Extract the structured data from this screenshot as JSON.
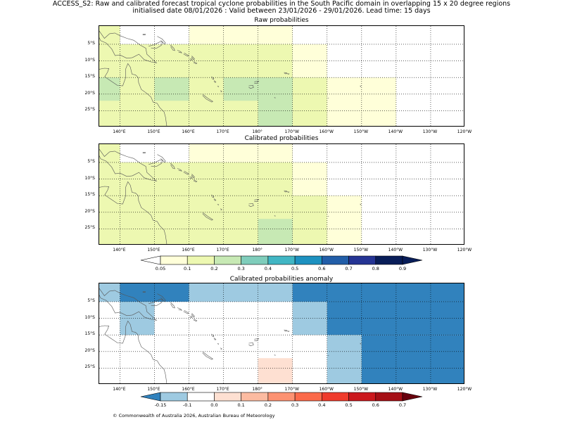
{
  "header": {
    "line1": "ACCESS_S2: Raw and calibrated forecast tropical cyclone probabilities in the South Pacific domain in overlapping 15 x 20 degree regions",
    "line2": "initialised date 08/01/2026 :  Valid between 23/01/2026 - 29/01/2026. Lead time: 15 days"
  },
  "panels": [
    {
      "title": "Raw probabilities"
    },
    {
      "title": "Calibrated probabilities"
    },
    {
      "title": "Calibrated probabilities anomaly"
    }
  ],
  "longitude_labels": [
    "140°E",
    "150°E",
    "160°E",
    "170°E",
    "180°",
    "170°W",
    "160°W",
    "150°W",
    "140°W",
    "130°W",
    "120°W"
  ],
  "longitude_values": [
    140,
    150,
    160,
    170,
    180,
    190,
    200,
    210,
    220,
    230,
    240
  ],
  "latitude_labels": [
    "5°S",
    "10°S",
    "15°S",
    "20°S",
    "25°S"
  ],
  "latitude_values": [
    -5,
    -10,
    -15,
    -20,
    -25
  ],
  "map_extent": {
    "lon": [
      134,
      240
    ],
    "lat": [
      -30,
      0.5
    ]
  },
  "probability_colorbar": {
    "labels": [
      "0.05",
      "0.1",
      "0.2",
      "0.3",
      "0.4",
      "0.5",
      "0.6",
      "0.7",
      "0.8",
      "0.9"
    ],
    "colors": [
      "#ffffd9",
      "#edf8b1",
      "#c7e9b4",
      "#7fcdbb",
      "#41b6c4",
      "#1d91c0",
      "#225ea8",
      "#253494",
      "#081d58"
    ],
    "under_color": "#ffffff",
    "over_color": "#081d58"
  },
  "anomaly_colorbar": {
    "labels": [
      "-0.15",
      "-0.1",
      "0.0",
      "0.1",
      "0.2",
      "0.3",
      "0.4",
      "0.5",
      "0.6",
      "0.7"
    ],
    "colors": [
      "#9ecae1",
      "#ffffff",
      "#fee0d2",
      "#fcbba1",
      "#fc9272",
      "#fb6a4a",
      "#ef3b2c",
      "#cb181d",
      "#a50f15"
    ],
    "under_color": "#3182bd",
    "over_color": "#67000d"
  },
  "raw_cells": [
    {
      "lon": [
        134,
        140
      ],
      "lat": [
        -30,
        0.5
      ],
      "color": "#edf8b1"
    },
    {
      "lon": [
        140,
        160
      ],
      "lat": [
        -30,
        -5
      ],
      "color": "#edf8b1"
    },
    {
      "lon": [
        160,
        190
      ],
      "lat": [
        -30,
        -5
      ],
      "color": "#edf8b1"
    },
    {
      "lon": [
        160,
        190
      ],
      "lat": [
        -5,
        0.5
      ],
      "color": "#ffffd9"
    },
    {
      "lon": [
        190,
        200
      ],
      "lat": [
        -30,
        -15
      ],
      "color": "#edf8b1"
    },
    {
      "lon": [
        190,
        200
      ],
      "lat": [
        -15,
        -5
      ],
      "color": "#ffffd9"
    },
    {
      "lon": [
        200,
        220
      ],
      "lat": [
        -30,
        -15
      ],
      "color": "#ffffd9"
    },
    {
      "lon": [
        134,
        140
      ],
      "lat": [
        -22,
        -15
      ],
      "color": "#c7e9b4"
    },
    {
      "lon": [
        150,
        160
      ],
      "lat": [
        -22,
        -15
      ],
      "color": "#c7e9b4"
    },
    {
      "lon": [
        170,
        190
      ],
      "lat": [
        -22,
        -15
      ],
      "color": "#c7e9b4"
    },
    {
      "lon": [
        180,
        190
      ],
      "lat": [
        -30,
        -15
      ],
      "color": "#c7e9b4"
    }
  ],
  "cal_cells": [
    {
      "lon": [
        134,
        140
      ],
      "lat": [
        -30,
        0.5
      ],
      "color": "#edf8b1"
    },
    {
      "lon": [
        140,
        190
      ],
      "lat": [
        -30,
        -5
      ],
      "color": "#edf8b1"
    },
    {
      "lon": [
        160,
        190
      ],
      "lat": [
        -5,
        0.5
      ],
      "color": "#ffffd9"
    },
    {
      "lon": [
        190,
        200
      ],
      "lat": [
        -15,
        -5
      ],
      "color": "#ffffd9"
    },
    {
      "lon": [
        190,
        200
      ],
      "lat": [
        -30,
        -15
      ],
      "color": "#edf8b1"
    },
    {
      "lon": [
        200,
        210
      ],
      "lat": [
        -30,
        -15
      ],
      "color": "#ffffd9"
    },
    {
      "lon": [
        180,
        190
      ],
      "lat": [
        -30,
        -22
      ],
      "color": "#c7e9b4"
    }
  ],
  "anom_cells": [
    {
      "lon": [
        134,
        140
      ],
      "lat": [
        -5,
        0.5
      ],
      "color": "#9ecae1"
    },
    {
      "lon": [
        140,
        160
      ],
      "lat": [
        -5,
        0.5
      ],
      "color": "#3182bd"
    },
    {
      "lon": [
        140,
        150
      ],
      "lat": [
        -15,
        -5
      ],
      "color": "#9ecae1"
    },
    {
      "lon": [
        160,
        190
      ],
      "lat": [
        -5,
        0.5
      ],
      "color": "#9ecae1"
    },
    {
      "lon": [
        190,
        240
      ],
      "lat": [
        -5,
        0.5
      ],
      "color": "#3182bd"
    },
    {
      "lon": [
        190,
        200
      ],
      "lat": [
        -15,
        -5
      ],
      "color": "#9ecae1"
    },
    {
      "lon": [
        200,
        240
      ],
      "lat": [
        -15,
        -5
      ],
      "color": "#3182bd"
    },
    {
      "lon": [
        200,
        210
      ],
      "lat": [
        -30,
        -15
      ],
      "color": "#9ecae1"
    },
    {
      "lon": [
        210,
        240
      ],
      "lat": [
        -30,
        -15
      ],
      "color": "#3182bd"
    },
    {
      "lon": [
        180,
        190
      ],
      "lat": [
        -30,
        -22
      ],
      "color": "#fee0d2"
    }
  ],
  "footer": {
    "credit": "© Commonwealth of Australia 2026, Australian Bureau of Meteorology"
  }
}
